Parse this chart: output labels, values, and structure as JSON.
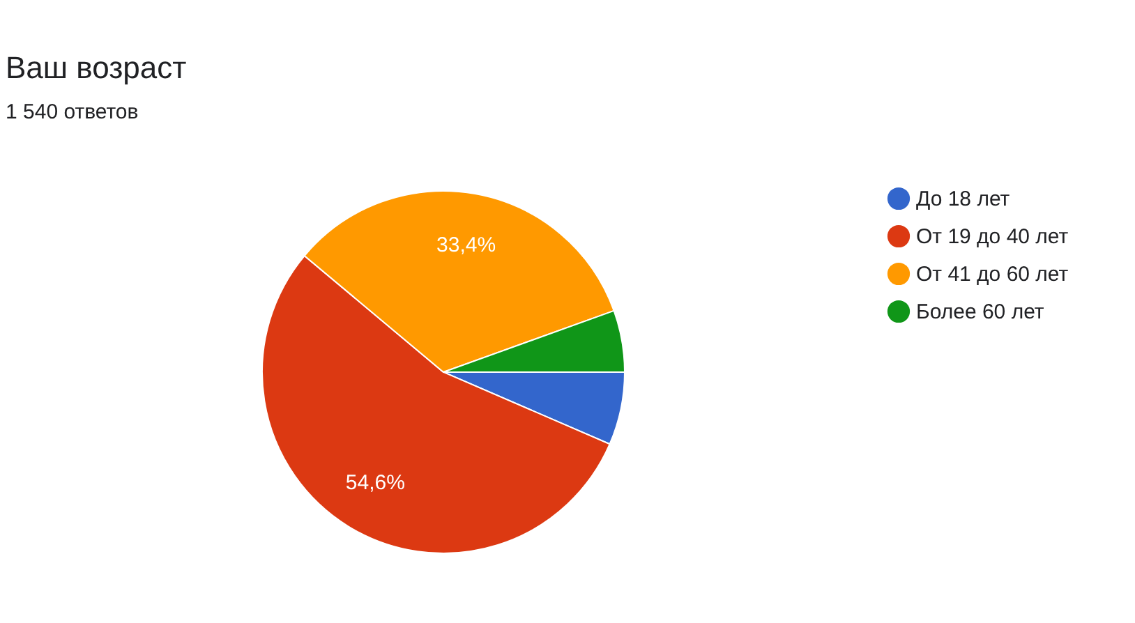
{
  "chart_data": {
    "type": "pie",
    "title": "Ваш возраст",
    "subtitle": "1 540 ответов",
    "categories": [
      "До 18 лет",
      "От 19 до 40 лет",
      "От 41 до 60 лет",
      "Более 60 лет"
    ],
    "values": [
      6.5,
      54.6,
      33.4,
      5.5
    ],
    "colors": [
      "#3366cc",
      "#dc3912",
      "#ff9900",
      "#109618"
    ],
    "value_labels": [
      null,
      "54,6%",
      "33,4%",
      null
    ],
    "legend": "right"
  }
}
